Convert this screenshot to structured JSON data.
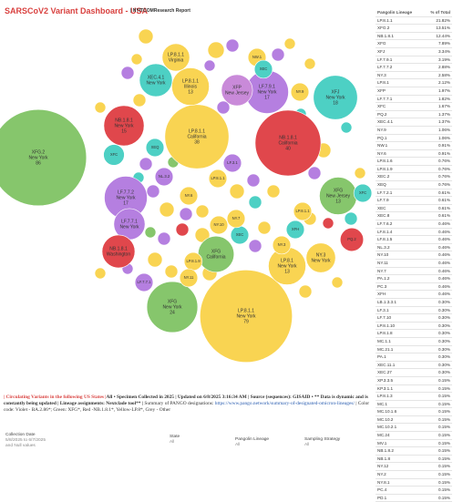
{
  "header": {
    "title": "SARSCoV2 Variant Dashboard - USA",
    "subtitle": "| NYITCOMResearch Report"
  },
  "bubbles": [
    {
      "lines": [
        "XFG.2",
        "New York"
      ],
      "count": 86,
      "color": "#86c66c"
    },
    {
      "lines": [
        "LP.8.1.1",
        "New York"
      ],
      "count": 79,
      "color": "#f9d452"
    },
    {
      "lines": [
        "NB.1.8.1",
        "California"
      ],
      "count": 40,
      "color": "#e0474c"
    },
    {
      "lines": [
        "LP.8.1.1",
        "California"
      ],
      "count": 38,
      "color": "#f9d452"
    },
    {
      "lines": [
        "XFG",
        "New York"
      ],
      "count": 24,
      "color": "#86c66c"
    },
    {
      "lines": [
        "XFJ",
        "New York"
      ],
      "count": 18,
      "color": "#4dd0c4"
    },
    {
      "lines": [
        "LF.7.7.2",
        "New York"
      ],
      "count": 17,
      "color": "#b57fe0"
    },
    {
      "lines": [
        "LF.7.9.1",
        "New York"
      ],
      "count": 17,
      "color": "#b57fe0"
    },
    {
      "lines": [
        "NB.1.8.1",
        "New York"
      ],
      "count": 15,
      "color": "#e0474c"
    },
    {
      "lines": [
        "XFG",
        "New Jersey"
      ],
      "count": 13,
      "color": "#86c66c"
    },
    {
      "lines": [
        "LP.8.1",
        "New York"
      ],
      "count": 13,
      "color": "#f9d452"
    },
    {
      "lines": [
        "LP.8.1.1",
        "Illinois"
      ],
      "count": 13,
      "color": "#f9d452"
    },
    {
      "lines": [
        "XFP",
        "New Jersey"
      ],
      "size": 9,
      "color": "#c98ad9"
    },
    {
      "lines": [
        "NY.3",
        "New York"
      ],
      "size": 8,
      "color": "#f9d452"
    },
    {
      "lines": [
        "LP.8.1.1",
        "Virginia"
      ],
      "size": 7,
      "color": "#f9d452"
    },
    {
      "lines": [
        "XEC.4.1",
        "New York"
      ],
      "size": 10,
      "color": "#4dd0c4"
    },
    {
      "lines": [
        "LF.7.7.1",
        "New York"
      ],
      "size": 9,
      "color": "#b57fe0"
    },
    {
      "lines": [
        "NB.1.8.1",
        "Washington"
      ],
      "size": 10,
      "color": "#e0474c"
    },
    {
      "lines": [
        "XFG",
        "California"
      ],
      "size": 12,
      "color": "#86c66c"
    },
    {
      "lines": [
        "PQ.2"
      ],
      "size": 5,
      "color": "#e0474c"
    },
    {
      "lines": [
        "XFC"
      ],
      "size": 4,
      "color": "#4dd0c4"
    },
    {
      "lines": [
        "XEQ"
      ],
      "size": 3,
      "color": "#4dd0c4"
    },
    {
      "lines": [
        "NY.9"
      ],
      "size": 3,
      "color": "#f9d452"
    },
    {
      "lines": [
        "NW.1"
      ],
      "size": 3,
      "color": "#f9d452"
    },
    {
      "lines": [
        "XEC"
      ],
      "size": 3,
      "color": "#4dd0c4"
    },
    {
      "lines": [
        "XEC"
      ],
      "size": 3,
      "color": "#4dd0c4"
    },
    {
      "lines": [
        "NL.3.2"
      ],
      "size": 3,
      "color": "#b57fe0"
    },
    {
      "lines": [
        "NY.6"
      ],
      "size": 3,
      "color": "#f9d452"
    },
    {
      "lines": [
        "LP.8.1.9"
      ],
      "size": 3,
      "color": "#f9d452"
    },
    {
      "lines": [
        "NY.11"
      ],
      "size": 3,
      "color": "#f9d452"
    },
    {
      "lines": [
        "LF.7.7.1"
      ],
      "size": 3,
      "color": "#b57fe0"
    },
    {
      "lines": [
        "XFH"
      ],
      "size": 3,
      "color": "#4dd0c4"
    },
    {
      "lines": [
        "NY.7"
      ],
      "size": 3,
      "color": "#f9d452"
    },
    {
      "lines": [
        "NY.10"
      ],
      "size": 3,
      "color": "#f9d452"
    },
    {
      "lines": [
        "LF.3.1"
      ],
      "size": 3,
      "color": "#b57fe0"
    },
    {
      "lines": [
        "LP.8.1.1"
      ],
      "size": 3,
      "color": "#f9d452"
    },
    {
      "lines": [
        "XFC"
      ],
      "size": 3,
      "color": "#4dd0c4"
    },
    {
      "lines": [
        "LP.8.1.1"
      ],
      "size": 3,
      "color": "#f9d452"
    },
    {
      "lines": [
        "NY.3"
      ],
      "size": 3,
      "color": "#f9d452"
    }
  ],
  "table": {
    "columns": [
      "Pangolin Lineage",
      "% of Total"
    ],
    "rows": [
      [
        "LP.8.1.1",
        "21.82%"
      ],
      [
        "XFG.2",
        "13.51%"
      ],
      [
        "NB.1.8.1",
        "12.44%"
      ],
      [
        "XFG",
        "7.89%"
      ],
      [
        "XFJ",
        "3.34%"
      ],
      [
        "LF.7.9.1",
        "3.19%"
      ],
      [
        "LF.7.7.2",
        "2.88%"
      ],
      [
        "NY.3",
        "2.58%"
      ],
      [
        "LP.8.1",
        "2.12%"
      ],
      [
        "XFP",
        "1.97%"
      ],
      [
        "LF.7.7.1",
        "1.82%"
      ],
      [
        "XFC",
        "1.67%"
      ],
      [
        "PQ.2",
        "1.37%"
      ],
      [
        "XEC.4.1",
        "1.37%"
      ],
      [
        "NY.9",
        "1.06%"
      ],
      [
        "PQ.1",
        "1.06%"
      ],
      [
        "NW.1",
        "0.91%"
      ],
      [
        "NY.6",
        "0.91%"
      ],
      [
        "LP.8.1.6",
        "0.76%"
      ],
      [
        "LP.8.1.9",
        "0.76%"
      ],
      [
        "XEC.2",
        "0.76%"
      ],
      [
        "XEQ",
        "0.76%"
      ],
      [
        "LF.7.2.1",
        "0.61%"
      ],
      [
        "LF.7.9",
        "0.61%"
      ],
      [
        "XEC",
        "0.61%"
      ],
      [
        "XEC.8",
        "0.61%"
      ],
      [
        "LF.7.6.2",
        "0.46%"
      ],
      [
        "LF.8.1.4",
        "0.46%"
      ],
      [
        "LF.8.1.5",
        "0.46%"
      ],
      [
        "NL.3.2",
        "0.46%"
      ],
      [
        "NY.10",
        "0.46%"
      ],
      [
        "NY.11",
        "0.46%"
      ],
      [
        "NY.7",
        "0.46%"
      ],
      [
        "PA.1.2",
        "0.46%"
      ],
      [
        "PC.3",
        "0.46%"
      ],
      [
        "XFH",
        "0.46%"
      ],
      [
        "LB.1.3.3.1",
        "0.30%"
      ],
      [
        "LF.3.1",
        "0.30%"
      ],
      [
        "LF.7.10",
        "0.30%"
      ],
      [
        "LP.8.1.10",
        "0.30%"
      ],
      [
        "LP.8.1.8",
        "0.30%"
      ],
      [
        "MC.1.1",
        "0.30%"
      ],
      [
        "MC.21.1",
        "0.30%"
      ],
      [
        "PA.1",
        "0.30%"
      ],
      [
        "XEC.11.1",
        "0.30%"
      ],
      [
        "XEC.27",
        "0.30%"
      ],
      [
        "XP.3.3.5",
        "0.15%"
      ],
      [
        "KP.3.1.1",
        "0.15%"
      ],
      [
        "LP.8.1.3",
        "0.15%"
      ],
      [
        "MC.1",
        "0.15%"
      ],
      [
        "MC.10.1.6",
        "0.15%"
      ],
      [
        "MC.10.2",
        "0.15%"
      ],
      [
        "MC.10.2.1",
        "0.15%"
      ],
      [
        "MC.24",
        "0.15%"
      ],
      [
        "MV.1",
        "0.15%"
      ],
      [
        "NB.1.8.2",
        "0.15%"
      ],
      [
        "NB.1.8",
        "0.15%"
      ],
      [
        "NY.12",
        "0.15%"
      ],
      [
        "NY.2",
        "0.15%"
      ],
      [
        "NY.8.1",
        "0.15%"
      ],
      [
        "PC.4",
        "0.15%"
      ],
      [
        "PD.1",
        "0.15%"
      ]
    ]
  },
  "footer": {
    "segments": [
      "| Circulating Variants in the following US States |",
      "All • Specimen Collected in 2025",
      "| Updated on 6/8/2025 3:16:34 AM |",
      " Source (sequences): GISAID • ** Data is dynamic and is constantly being updated | Lineage assignments: Nextclade tool** |",
      " Summary of PANGO designations: ",
      "https://www.pango.network/summary-of-designated-omicron-lineages/",
      " | Color code: Violet - BA.2.86*; Green: XFG*, Red -NB.1.8.1*, Yellow-LP.8*, Grey - Other"
    ]
  },
  "filters": [
    {
      "label": "Collection Date",
      "value": "5/8/2025 to 6/7/2025",
      "extra": "and Null values"
    },
    {
      "label": "State",
      "value": "All"
    },
    {
      "label": "Pangolin Lineage",
      "value": "All"
    },
    {
      "label": "Sampling Strategy",
      "value": "All"
    }
  ]
}
